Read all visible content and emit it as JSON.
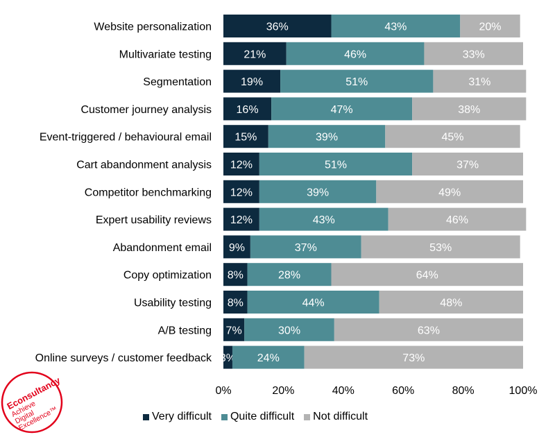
{
  "chart_data": {
    "type": "bar",
    "orientation": "horizontal",
    "stacked": true,
    "categories": [
      "Website personalization",
      "Multivariate testing",
      "Segmentation",
      "Customer journey analysis",
      "Event-triggered / behavioural email",
      "Cart abandonment analysis",
      "Competitor benchmarking",
      "Expert usability reviews",
      "Abandonment email",
      "Copy optimization",
      "Usability testing",
      "A/B testing",
      "Online surveys / customer feedback"
    ],
    "series": [
      {
        "name": "Very difficult",
        "color": "#0d2a3f",
        "label_color": "#ffffff",
        "values": [
          36,
          21,
          19,
          16,
          15,
          12,
          12,
          12,
          9,
          8,
          8,
          7,
          3
        ]
      },
      {
        "name": "Quite difficult",
        "color": "#4e8c94",
        "label_color": "#ffffff",
        "values": [
          43,
          46,
          51,
          47,
          39,
          51,
          39,
          43,
          37,
          28,
          44,
          30,
          24
        ]
      },
      {
        "name": "Not difficult",
        "color": "#b3b3b3",
        "label_color": "#ffffff",
        "values": [
          20,
          33,
          31,
          38,
          45,
          37,
          49,
          46,
          53,
          64,
          48,
          63,
          73
        ]
      }
    ],
    "xlim": [
      0,
      100
    ],
    "xticks": [
      "0%",
      "20%",
      "40%",
      "60%",
      "80%",
      "100%"
    ],
    "value_suffix": "%",
    "grid": false,
    "legend_position": "bottom"
  },
  "logo": {
    "name": "Econsultancy",
    "tagline_1": "Achieve",
    "tagline_2": "Digital",
    "tagline_3": "Excellence™",
    "color": "#e2001a"
  }
}
